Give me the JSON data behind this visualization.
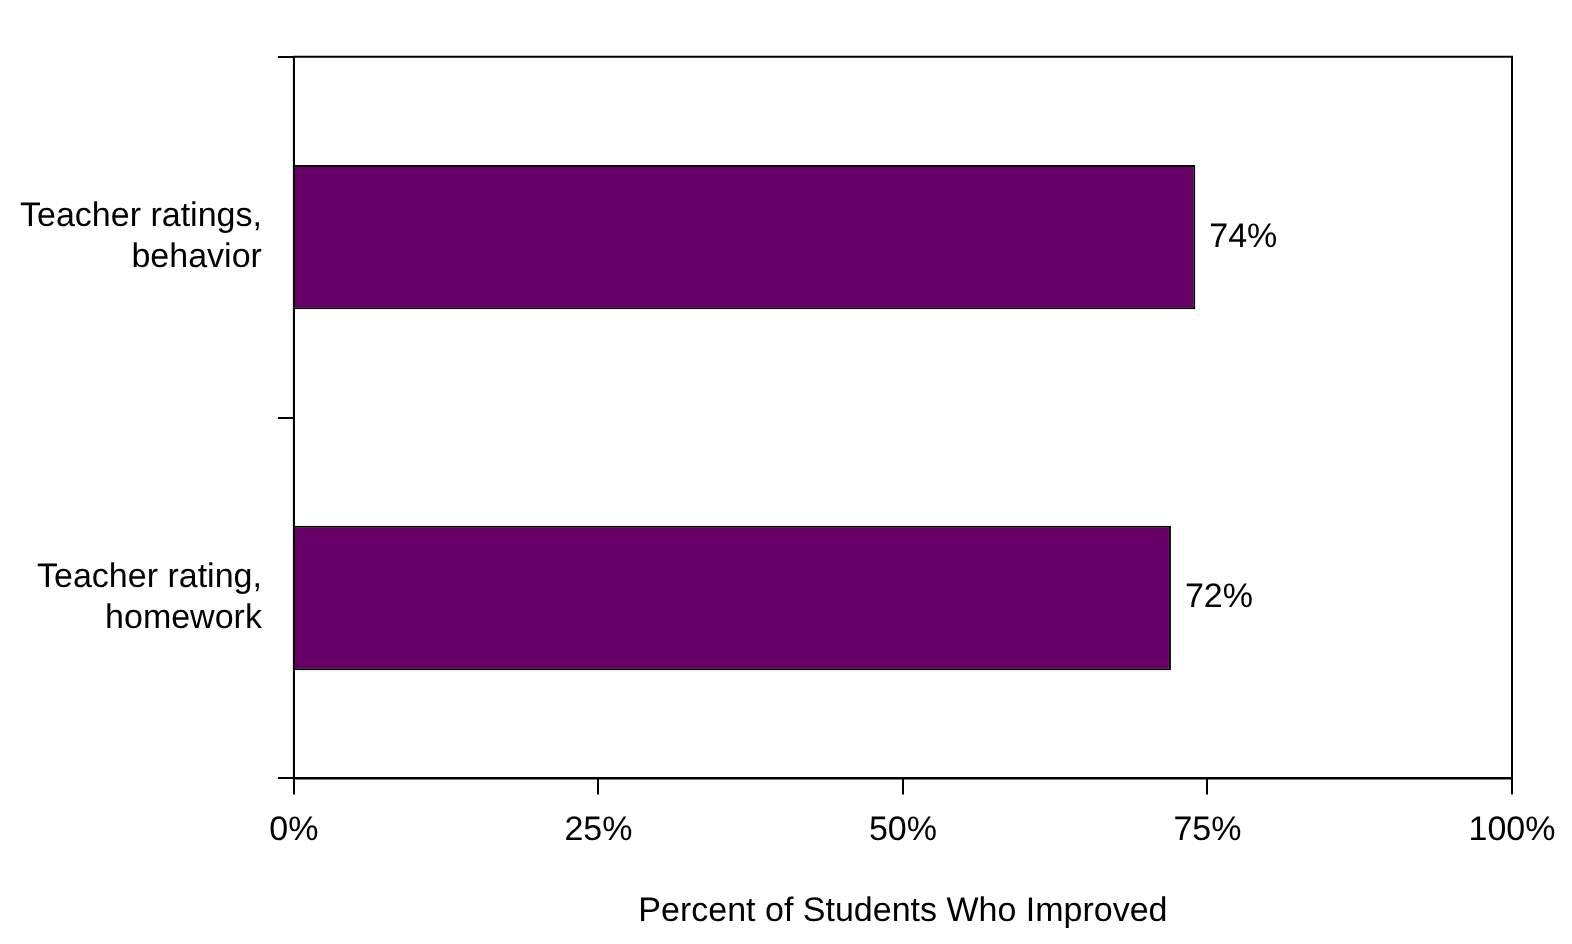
{
  "chart_data": {
    "type": "bar",
    "orientation": "horizontal",
    "xlabel": "Percent of Students Who Improved",
    "categories": [
      "Teacher ratings, behavior",
      "Teacher rating, homework"
    ],
    "values": [
      74,
      72
    ],
    "color": "#660066",
    "value_labels": [
      "74%",
      "72%"
    ],
    "xlim": [
      0,
      100
    ],
    "xticks": [
      {
        "value": 0,
        "label": "0%"
      },
      {
        "value": 25,
        "label": "25%"
      },
      {
        "value": 50,
        "label": "50%"
      },
      {
        "value": 75,
        "label": "75%"
      },
      {
        "value": 100,
        "label": "100%"
      }
    ]
  }
}
